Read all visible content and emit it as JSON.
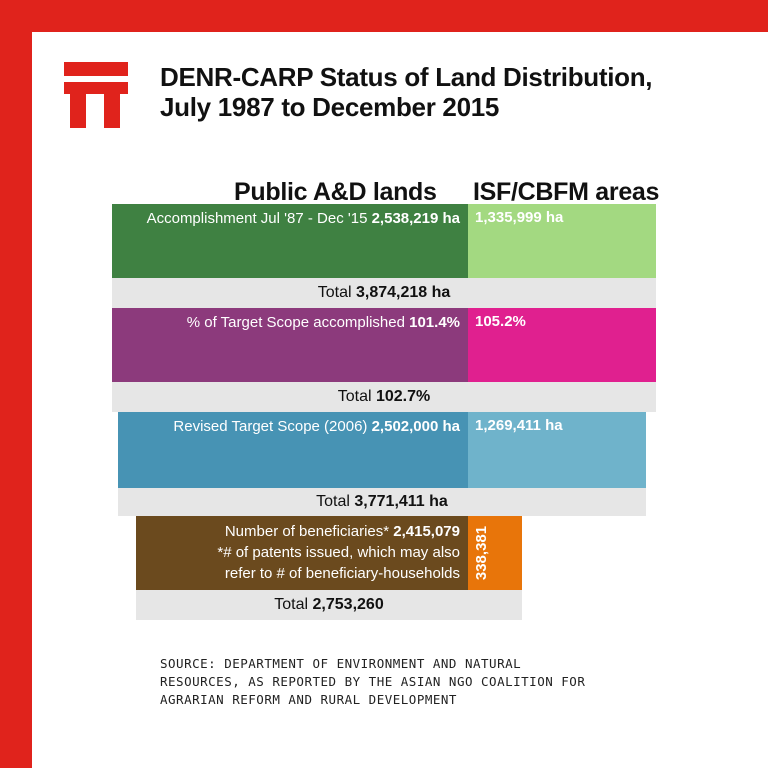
{
  "colors": {
    "frame": "#e0231c",
    "accomplishment_public": "#3f8142",
    "accomplishment_isf": "#a3d981",
    "percent_public": "#8c3a7c",
    "percent_isf": "#e0208f",
    "target_public": "#4793b4",
    "target_isf": "#6fb3cb",
    "beneficiaries_public": "#6b4a1e",
    "beneficiaries_isf": "#e8750a",
    "total_bar": "#e6e6e6"
  },
  "logo": {
    "icon": "publication-logo-icon"
  },
  "title": {
    "line1": "DENR-CARP Status of Land Distribution,",
    "line2": "July 1987 to December 2015"
  },
  "columns": {
    "left": "Public A&D lands",
    "right": "ISF/CBFM areas"
  },
  "chart_data": {
    "type": "bar",
    "series_names": [
      "Public A&D lands",
      "ISF/CBFM areas"
    ],
    "rows": [
      {
        "label": "Accomplishment Jul '87 - Dec '15",
        "public_text": "2,538,219 ha",
        "isf_text": "1,335,999 ha",
        "public": 2538219,
        "isf": 1335999,
        "total_label": "Total",
        "total_text": "3,874,218 ha",
        "total": 3874218,
        "unit": "ha"
      },
      {
        "label": "% of Target Scope accomplished",
        "public_text": "101.4%",
        "isf_text": "105.2%",
        "public": 101.4,
        "isf": 105.2,
        "total_label": "Total",
        "total_text": "102.7%",
        "total": 102.7,
        "unit": "%"
      },
      {
        "label": "Revised Target Scope (2006)",
        "public_text": "2,502,000 ha",
        "isf_text": "1,269,411 ha",
        "public": 2502000,
        "isf": 1269411,
        "total_label": "Total",
        "total_text": "3,771,411 ha",
        "total": 3771411,
        "unit": "ha"
      },
      {
        "label": "Number of beneficiaries*",
        "public_text": "2,415,079",
        "isf_text": "338,381",
        "note_line1": "*# of patents issued, which may also",
        "note_line2": "refer to # of beneficiary-households",
        "public": 2415079,
        "isf": 338381,
        "total_label": "Total",
        "total_text": "2,753,260",
        "total": 2753260,
        "unit": ""
      }
    ]
  },
  "source": {
    "line1": "SOURCE: DEPARTMENT OF ENVIRONMENT AND NATURAL",
    "line2": "RESOURCES, AS REPORTED BY THE ASIAN NGO COALITION FOR",
    "line3": "AGRARIAN REFORM AND RURAL DEVELOPMENT"
  }
}
